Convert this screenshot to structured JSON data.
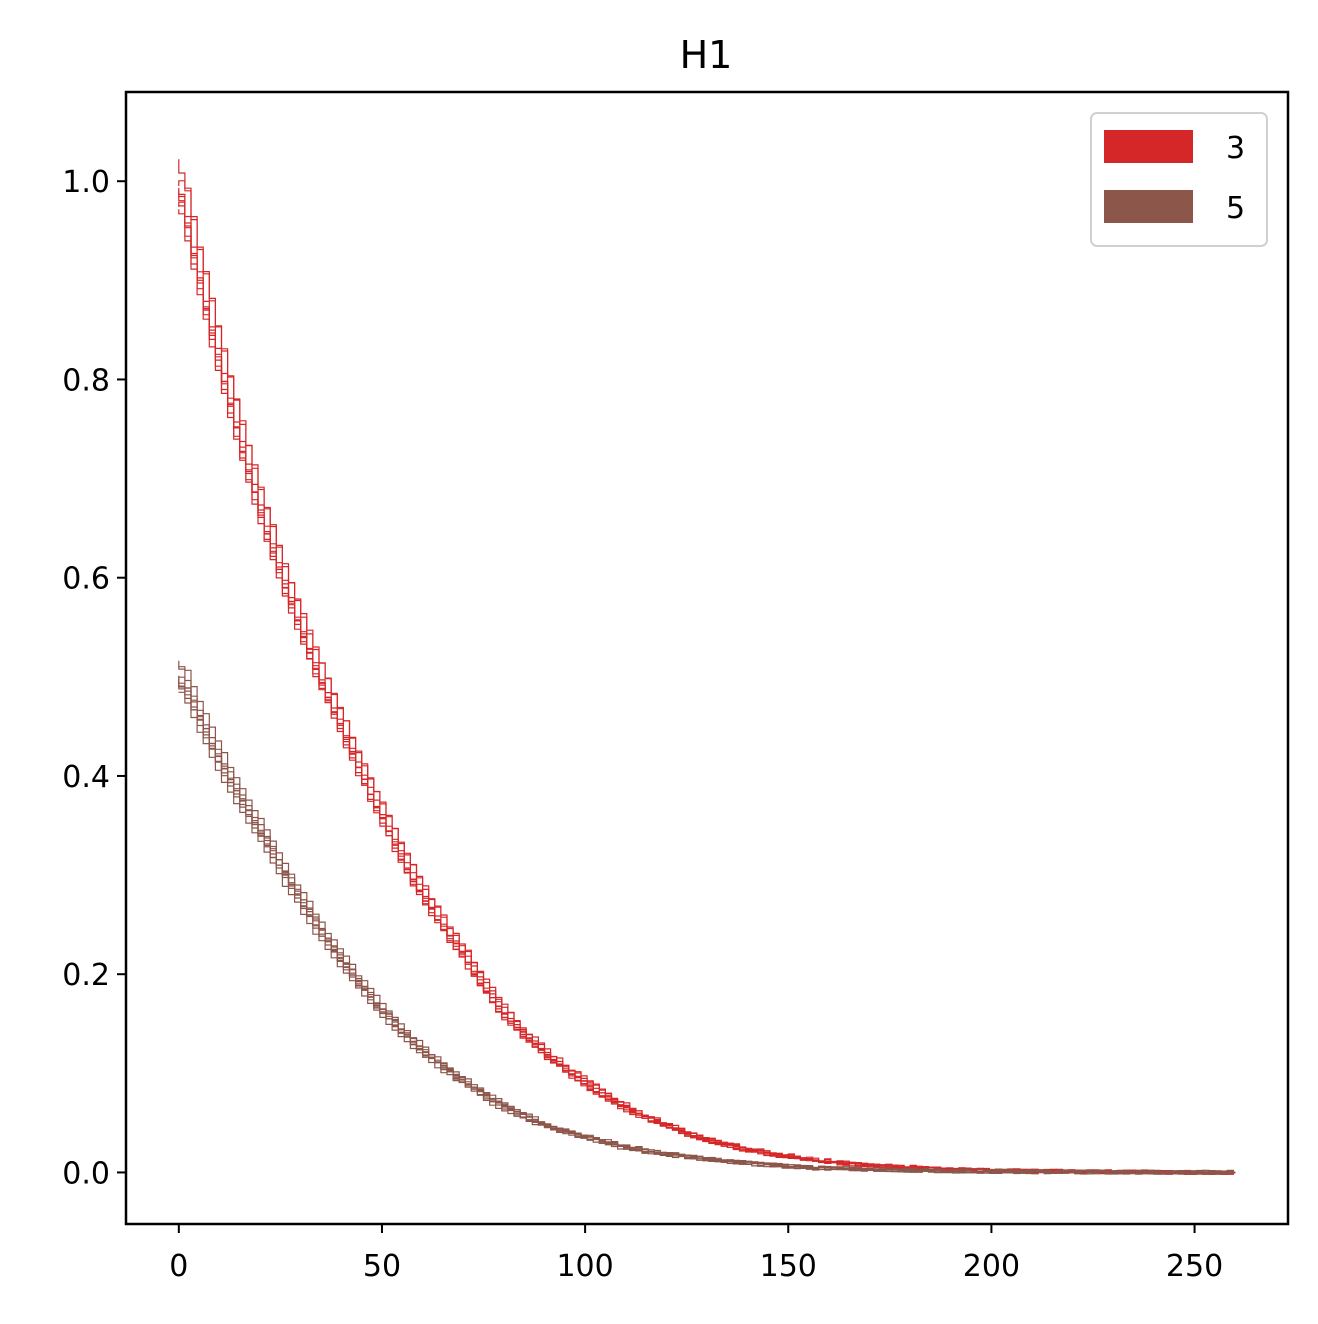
{
  "chart_data": {
    "type": "line",
    "title": "H1",
    "xlabel": "",
    "ylabel": "",
    "xlim": [
      -13,
      273
    ],
    "ylim": [
      -0.052,
      1.09
    ],
    "x_ticks": [
      0,
      50,
      100,
      150,
      200,
      250
    ],
    "x_tick_labels": [
      "0",
      "50",
      "100",
      "150",
      "200",
      "250"
    ],
    "y_ticks": [
      0.0,
      0.2,
      0.4,
      0.6,
      0.8,
      1.0
    ],
    "y_tick_labels": [
      "0.0",
      "0.2",
      "0.4",
      "0.6",
      "0.8",
      "1.0"
    ],
    "grid": false,
    "legend_position": "top-right",
    "step_lines": true,
    "series": [
      {
        "name": "3",
        "color": "#d62728",
        "replicates": 8,
        "x": [
          0,
          10,
          20,
          30,
          40,
          50,
          60,
          70,
          80,
          90,
          100,
          110,
          120,
          130,
          140,
          150,
          160,
          170,
          180,
          200,
          220,
          240,
          260
        ],
        "y": [
          1.0,
          0.82,
          0.67,
          0.55,
          0.45,
          0.36,
          0.28,
          0.22,
          0.16,
          0.12,
          0.09,
          0.065,
          0.047,
          0.033,
          0.023,
          0.016,
          0.011,
          0.007,
          0.005,
          0.002,
          0.001,
          0.0005,
          0.0
        ]
      },
      {
        "name": "5",
        "color": "#8c564b",
        "replicates": 8,
        "x": [
          0,
          10,
          20,
          30,
          40,
          50,
          60,
          70,
          80,
          90,
          100,
          110,
          120,
          130,
          140,
          150,
          160,
          170,
          180,
          200,
          220,
          240,
          260
        ],
        "y": [
          0.5,
          0.41,
          0.34,
          0.27,
          0.21,
          0.16,
          0.12,
          0.09,
          0.065,
          0.047,
          0.035,
          0.025,
          0.018,
          0.013,
          0.009,
          0.006,
          0.004,
          0.003,
          0.002,
          0.001,
          0.0005,
          0.0002,
          0.0
        ]
      }
    ]
  }
}
